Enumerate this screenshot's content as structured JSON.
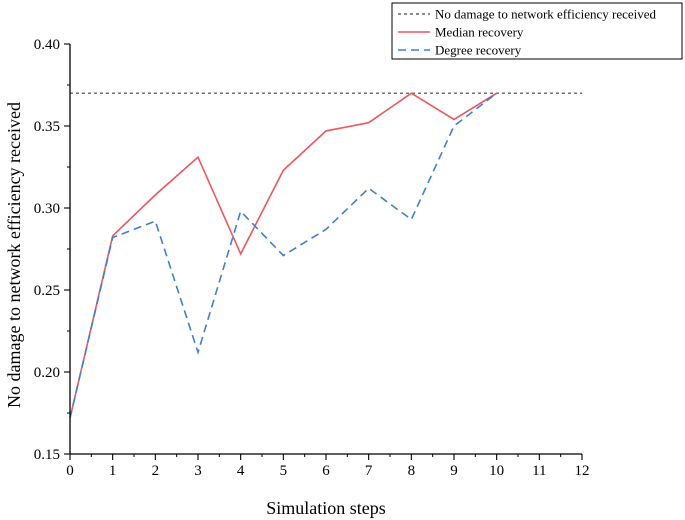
{
  "chart_data": {
    "type": "line",
    "title": "",
    "xlabel": "Simulation steps",
    "ylabel": "No damage to network efficiency received",
    "xlim": [
      0,
      12
    ],
    "ylim": [
      0.15,
      0.4
    ],
    "x_ticks": [
      "0",
      "1",
      "2",
      "3",
      "4",
      "5",
      "6",
      "7",
      "8",
      "9",
      "10",
      "11",
      "12"
    ],
    "y_ticks": [
      "0.15",
      "0.20",
      "0.25",
      "0.30",
      "0.35",
      "0.40"
    ],
    "grid": false,
    "legend_position": "top-right",
    "series": [
      {
        "name": "No damage to network efficiency received",
        "style": "dotted",
        "color": "#444444",
        "x": [
          0,
          12
        ],
        "values": [
          0.37,
          0.37
        ]
      },
      {
        "name": "Median recovery",
        "style": "solid",
        "color": "#f0565a",
        "x": [
          0,
          1,
          2,
          3,
          4,
          5,
          6,
          7,
          8,
          9,
          10
        ],
        "values": [
          0.172,
          0.283,
          0.308,
          0.331,
          0.272,
          0.323,
          0.347,
          0.352,
          0.37,
          0.354,
          0.37
        ]
      },
      {
        "name": "Degree recovery",
        "style": "dashed",
        "color": "#3f7fd4",
        "x": [
          0,
          1,
          2,
          3,
          4,
          5,
          6,
          7,
          8,
          9,
          10
        ],
        "values": [
          0.172,
          0.282,
          0.292,
          0.212,
          0.298,
          0.271,
          0.287,
          0.312,
          0.293,
          0.35,
          0.37
        ]
      }
    ]
  }
}
